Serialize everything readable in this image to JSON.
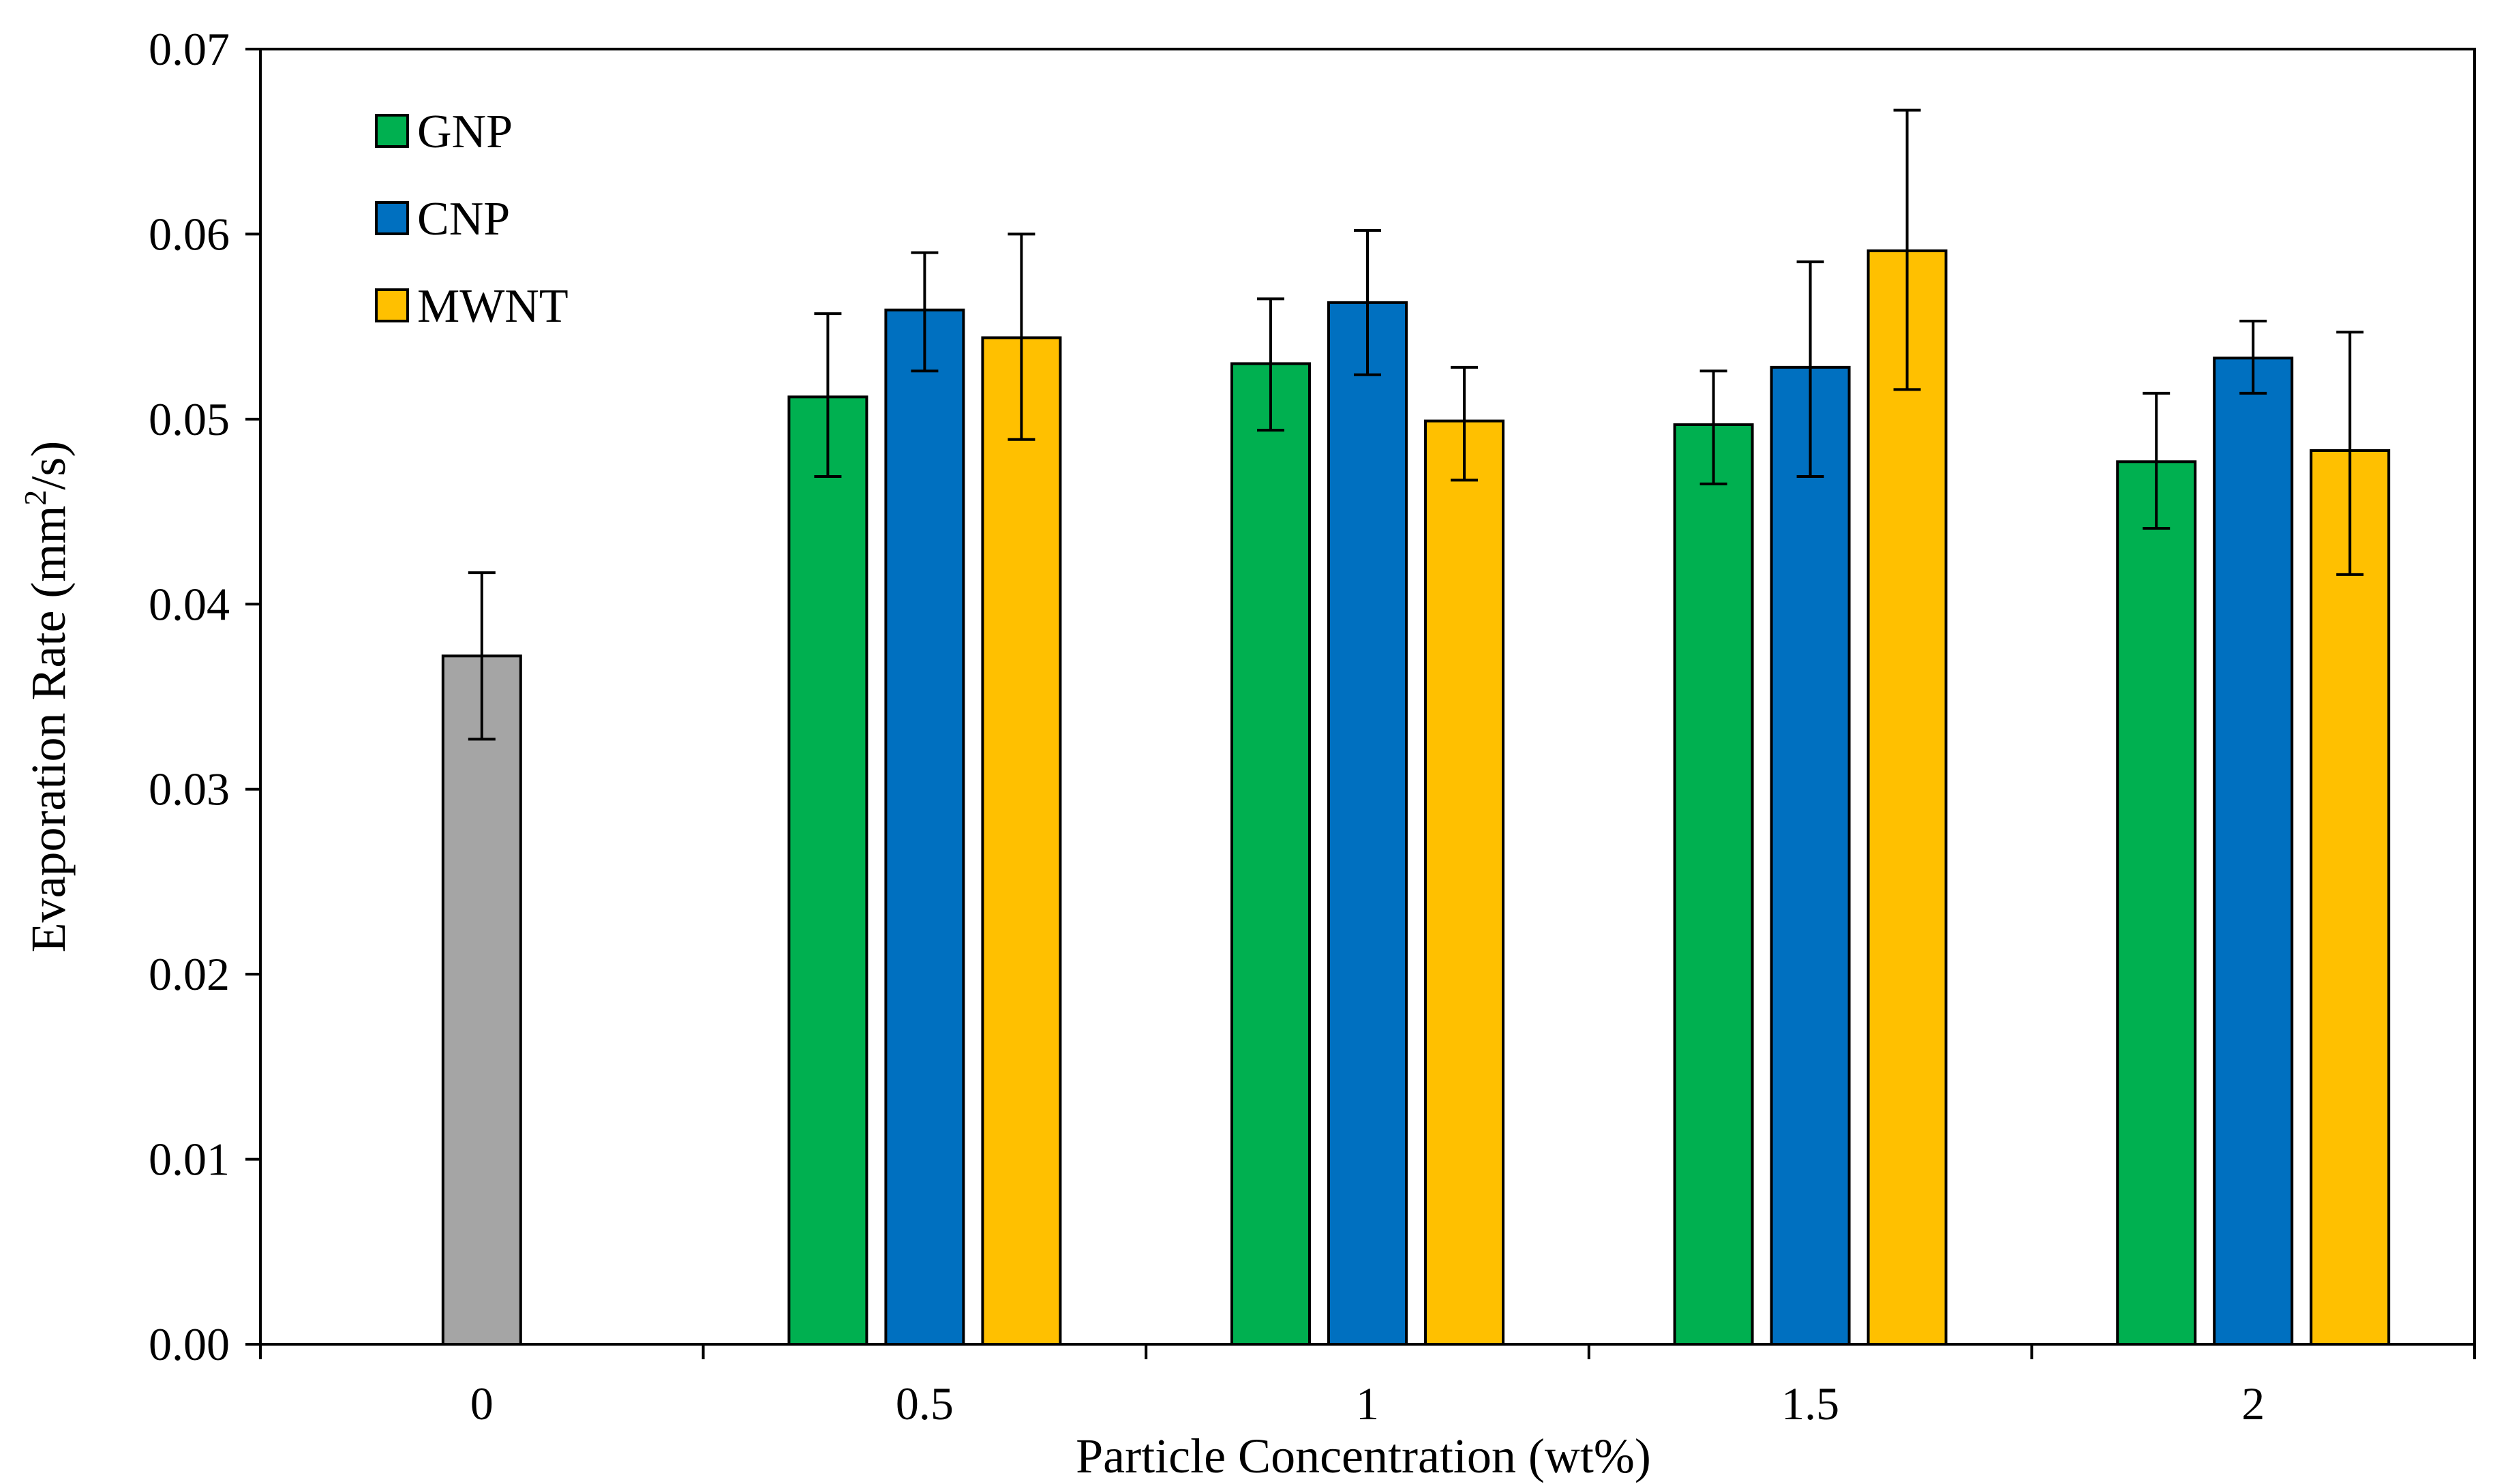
{
  "chart_data": {
    "type": "bar",
    "title": "",
    "xlabel": "Particle Concentration (wt%)",
    "ylabel_main": "Evaporation Rate (mm",
    "ylabel_sup": "2",
    "ylabel_tail": "/s)",
    "ylim": [
      0,
      0.07
    ],
    "y_ticks": [
      0.0,
      0.01,
      0.02,
      0.03,
      0.04,
      0.05,
      0.06,
      0.07
    ],
    "y_tick_labels": [
      "0.00",
      "0.01",
      "0.02",
      "0.03",
      "0.04",
      "0.05",
      "0.06",
      "0.07"
    ],
    "categories": [
      "0",
      "0.5",
      "1",
      "1.5",
      "2"
    ],
    "base_fluid": {
      "category": "0",
      "value": 0.0372,
      "err_low": 0.0045,
      "err_high": 0.0045,
      "color": "#A5A5A5"
    },
    "series": [
      {
        "name": "GNP",
        "color": "#00B050",
        "values": [
          null,
          0.0512,
          0.053,
          0.0497,
          0.0477
        ],
        "err_low": [
          null,
          0.0043,
          0.0036,
          0.0032,
          0.0036
        ],
        "err_high": [
          null,
          0.0045,
          0.0035,
          0.0029,
          0.0037
        ]
      },
      {
        "name": "CNP",
        "color": "#0070C0",
        "values": [
          null,
          0.0559,
          0.0563,
          0.0528,
          0.0533
        ],
        "err_low": [
          null,
          0.0033,
          0.0039,
          0.0059,
          0.0019
        ],
        "err_high": [
          null,
          0.0031,
          0.0039,
          0.0057,
          0.002
        ]
      },
      {
        "name": "MWNT",
        "color": "#FFC000",
        "values": [
          null,
          0.0544,
          0.0499,
          0.0591,
          0.0483
        ],
        "err_low": [
          null,
          0.0055,
          0.0032,
          0.0075,
          0.0067
        ],
        "err_high": [
          null,
          0.0056,
          0.0029,
          0.0076,
          0.0064
        ]
      }
    ],
    "legend": [
      "GNP",
      "CNP",
      "MWNT"
    ],
    "legend_position": "top-left",
    "grid": false
  }
}
